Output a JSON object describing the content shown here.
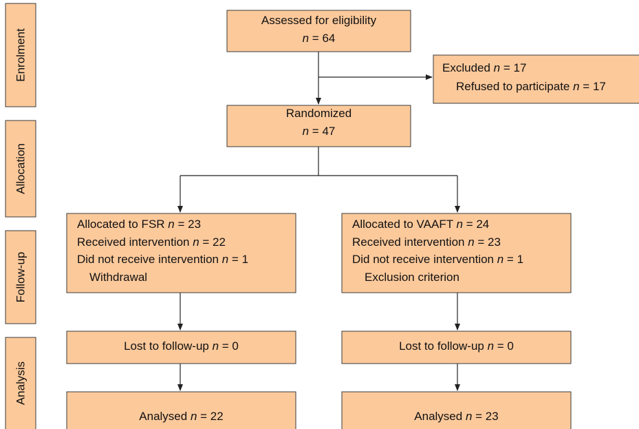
{
  "stages": [
    "Enrolment",
    "Allocation",
    "Follow-up",
    "Analysis"
  ],
  "nodes": [
    {
      "lines": [
        [
          {
            "text": "Assessed for eligibility"
          }
        ],
        [
          {
            "text": "n",
            "italic": true
          },
          {
            "text": " = 64"
          }
        ]
      ]
    },
    {
      "lines": [
        [
          {
            "text": "Excluded "
          },
          {
            "text": "n",
            "italic": true
          },
          {
            "text": " = 17"
          }
        ],
        [
          {
            "text": "Refused to participate "
          },
          {
            "text": "n",
            "italic": true
          },
          {
            "text": " = 17"
          }
        ]
      ]
    },
    {
      "lines": [
        [
          {
            "text": "Randomized"
          }
        ],
        [
          {
            "text": "n",
            "italic": true
          },
          {
            "text": " = 47"
          }
        ]
      ]
    },
    {
      "lines": [
        [
          {
            "text": "Allocated to FSR "
          },
          {
            "text": "n",
            "italic": true
          },
          {
            "text": " = 23"
          }
        ],
        [
          {
            "text": "Received intervention "
          },
          {
            "text": "n",
            "italic": true
          },
          {
            "text": " = 22"
          }
        ],
        [
          {
            "text": "Did not receive intervention "
          },
          {
            "text": "n",
            "italic": true
          },
          {
            "text": " = 1"
          }
        ],
        [
          {
            "text": "Withdrawal"
          }
        ]
      ]
    },
    {
      "lines": [
        [
          {
            "text": "Allocated to VAAFT "
          },
          {
            "text": "n",
            "italic": true
          },
          {
            "text": " = 24"
          }
        ],
        [
          {
            "text": "Received intervention "
          },
          {
            "text": "n",
            "italic": true
          },
          {
            "text": " = 23"
          }
        ],
        [
          {
            "text": "Did not receive intervention "
          },
          {
            "text": "n",
            "italic": true
          },
          {
            "text": " = 1"
          }
        ],
        [
          {
            "text": "Exclusion criterion"
          }
        ]
      ]
    },
    {
      "lines": [
        [
          {
            "text": "Lost to follow-up "
          },
          {
            "text": "n",
            "italic": true
          },
          {
            "text": " = 0"
          }
        ]
      ]
    },
    {
      "lines": [
        [
          {
            "text": "Lost to follow-up "
          },
          {
            "text": "n",
            "italic": true
          },
          {
            "text": " = 0"
          }
        ]
      ]
    },
    {
      "lines": [
        [
          {
            "text": "Analysed "
          },
          {
            "text": "n",
            "italic": true
          },
          {
            "text": " = 22"
          }
        ]
      ]
    },
    {
      "lines": [
        [
          {
            "text": "Analysed "
          },
          {
            "text": "n",
            "italic": true
          },
          {
            "text": " = 23"
          }
        ]
      ]
    }
  ]
}
